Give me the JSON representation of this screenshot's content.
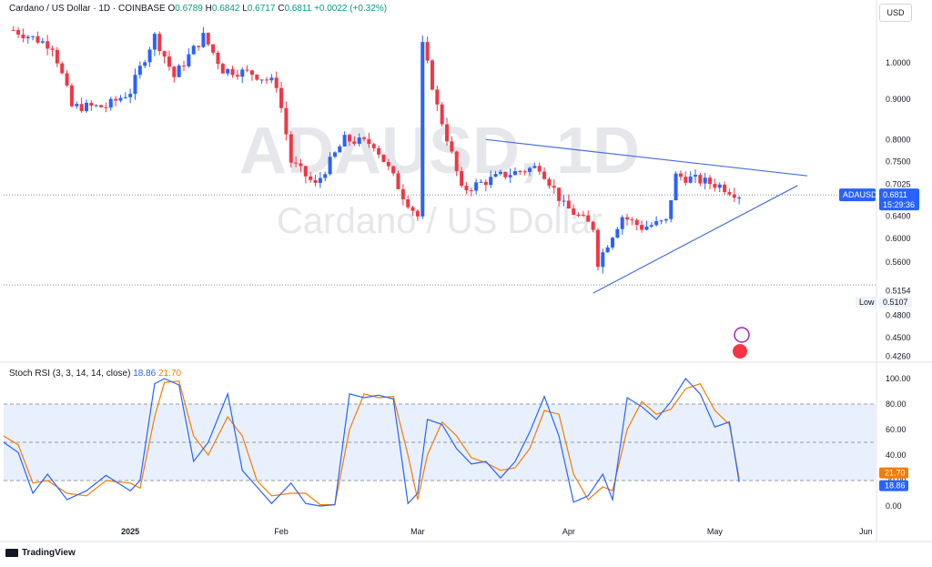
{
  "header": {
    "symbol": "Cardano / US Dollar · 1D · COINBASE",
    "o_label": "O",
    "o_value": "0.6789",
    "h_label": "H",
    "h_value": "0.6842",
    "l_label": "L",
    "l_value": "0.6717",
    "c_label": "C",
    "c_value": "0.6811",
    "change": "+0.0022 (+0.32%)"
  },
  "currency_button": "USD",
  "watermark": {
    "ticker": "ADAUSD, 1D",
    "name": "Cardano / US Dollar"
  },
  "price_axis": {
    "ticks": [
      "1.0000",
      "0.9000",
      "0.8000",
      "0.7500",
      "0.7025",
      "0.6400",
      "0.6000",
      "0.5600",
      "0.5154",
      "0.4800",
      "0.4500",
      "0.4260"
    ],
    "scale": "log"
  },
  "last_price": {
    "symbol_label": "ADAUSD",
    "price": "0.6811",
    "countdown": "15:29:36"
  },
  "low_marker": {
    "label": "Low",
    "value": "0.5107"
  },
  "stoch": {
    "title": "Stoch RSI (3, 3, 14, 14, close)",
    "k_value": "18.86",
    "d_value": "21.70",
    "ticks": [
      "100.00",
      "80.00",
      "60.00",
      "40.00",
      "20.00",
      "0.00"
    ],
    "band": [
      20,
      80
    ]
  },
  "time_axis": {
    "labels": [
      "2025",
      "Feb",
      "Mar",
      "Apr",
      "May",
      "Jun"
    ]
  },
  "brand": "TradingView",
  "colors": {
    "up": "#2962ff",
    "down": "#f23645",
    "k_line": "#2962ff",
    "d_line": "#f57c00",
    "trendline": "#4a6fdc",
    "band": "#e8f0fe"
  },
  "chart_data": {
    "type": "candlestick",
    "title": "Cardano / US Dollar",
    "timeframe": "1D",
    "exchange": "COINBASE",
    "x_range": [
      "2024-12-06",
      "2025-06-03"
    ],
    "y_range": [
      0.42,
      1.2
    ],
    "ohlc_close_approx": [
      [
        "2024-12-08",
        1.1
      ],
      [
        "2024-12-16",
        1.05
      ],
      [
        "2024-12-20",
        0.88
      ],
      [
        "2024-12-27",
        0.88
      ],
      [
        "2025-01-01",
        0.92
      ],
      [
        "2025-01-06",
        1.08
      ],
      [
        "2025-01-10",
        0.96
      ],
      [
        "2025-01-16",
        1.08
      ],
      [
        "2025-01-20",
        0.98
      ],
      [
        "2025-01-26",
        0.97
      ],
      [
        "2025-01-31",
        0.94
      ],
      [
        "2025-02-03",
        0.75
      ],
      [
        "2025-02-08",
        0.7
      ],
      [
        "2025-02-14",
        0.8
      ],
      [
        "2025-02-20",
        0.79
      ],
      [
        "2025-02-26",
        0.68
      ],
      [
        "2025-03-01",
        0.64
      ],
      [
        "2025-03-02",
        1.05
      ],
      [
        "2025-03-05",
        0.88
      ],
      [
        "2025-03-10",
        0.69
      ],
      [
        "2025-03-18",
        0.72
      ],
      [
        "2025-03-26",
        0.74
      ],
      [
        "2025-03-31",
        0.66
      ],
      [
        "2025-04-06",
        0.62
      ],
      [
        "2025-04-07",
        0.56
      ],
      [
        "2025-04-12",
        0.64
      ],
      [
        "2025-04-16",
        0.62
      ],
      [
        "2025-04-21",
        0.63
      ],
      [
        "2025-04-23",
        0.72
      ],
      [
        "2025-04-28",
        0.71
      ],
      [
        "2025-05-02",
        0.7
      ],
      [
        "2025-05-06",
        0.6811
      ]
    ],
    "trendlines": [
      {
        "from": [
          "2025-03-15",
          0.8
        ],
        "to": [
          "2025-05-20",
          0.72
        ]
      },
      {
        "from": [
          "2025-04-06",
          0.512
        ],
        "to": [
          "2025-05-18",
          0.7
        ]
      }
    ],
    "stoch_rsi": {
      "params": "3, 3, 14, 14, close",
      "k": 18.86,
      "d": 21.7,
      "overbought": 80,
      "oversold": 20,
      "k_series": [
        [
          "2024-12-06",
          50
        ],
        [
          "2024-12-09",
          42
        ],
        [
          "2024-12-12",
          10
        ],
        [
          "2024-12-15",
          25
        ],
        [
          "2024-12-19",
          5
        ],
        [
          "2024-12-23",
          12
        ],
        [
          "2024-12-27",
          24
        ],
        [
          "2025-01-01",
          12
        ],
        [
          "2025-01-03",
          20
        ],
        [
          "2025-01-06",
          96
        ],
        [
          "2025-01-08",
          100
        ],
        [
          "2025-01-11",
          95
        ],
        [
          "2025-01-14",
          35
        ],
        [
          "2025-01-17",
          50
        ],
        [
          "2025-01-21",
          88
        ],
        [
          "2025-01-24",
          28
        ],
        [
          "2025-01-27",
          15
        ],
        [
          "2025-01-30",
          2
        ],
        [
          "2025-02-03",
          18
        ],
        [
          "2025-02-06",
          2
        ],
        [
          "2025-02-09",
          0
        ],
        [
          "2025-02-12",
          1
        ],
        [
          "2025-02-15",
          88
        ],
        [
          "2025-02-18",
          85
        ],
        [
          "2025-02-21",
          87
        ],
        [
          "2025-02-24",
          84
        ],
        [
          "2025-02-27",
          2
        ],
        [
          "2025-03-01",
          10
        ],
        [
          "2025-03-03",
          68
        ],
        [
          "2025-03-06",
          64
        ],
        [
          "2025-03-09",
          45
        ],
        [
          "2025-03-12",
          33
        ],
        [
          "2025-03-15",
          35
        ],
        [
          "2025-03-18",
          22
        ],
        [
          "2025-03-21",
          35
        ],
        [
          "2025-03-24",
          58
        ],
        [
          "2025-03-27",
          86
        ],
        [
          "2025-03-30",
          55
        ],
        [
          "2025-04-02",
          3
        ],
        [
          "2025-04-05",
          8
        ],
        [
          "2025-04-08",
          25
        ],
        [
          "2025-04-10",
          5
        ],
        [
          "2025-04-13",
          85
        ],
        [
          "2025-04-16",
          78
        ],
        [
          "2025-04-19",
          68
        ],
        [
          "2025-04-22",
          82
        ],
        [
          "2025-04-25",
          100
        ],
        [
          "2025-04-28",
          88
        ],
        [
          "2025-05-01",
          62
        ],
        [
          "2025-05-04",
          66
        ],
        [
          "2025-05-06",
          18.86
        ]
      ],
      "d_series": [
        [
          "2024-12-06",
          55
        ],
        [
          "2024-12-09",
          48
        ],
        [
          "2024-12-12",
          18
        ],
        [
          "2024-12-15",
          20
        ],
        [
          "2024-12-19",
          10
        ],
        [
          "2024-12-23",
          8
        ],
        [
          "2024-12-27",
          20
        ],
        [
          "2025-01-01",
          18
        ],
        [
          "2025-01-03",
          14
        ],
        [
          "2025-01-06",
          70
        ],
        [
          "2025-01-08",
          97
        ],
        [
          "2025-01-11",
          98
        ],
        [
          "2025-01-14",
          55
        ],
        [
          "2025-01-17",
          40
        ],
        [
          "2025-01-21",
          70
        ],
        [
          "2025-01-24",
          55
        ],
        [
          "2025-01-27",
          20
        ],
        [
          "2025-01-30",
          8
        ],
        [
          "2025-02-03",
          10
        ],
        [
          "2025-02-06",
          10
        ],
        [
          "2025-02-09",
          1
        ],
        [
          "2025-02-12",
          1
        ],
        [
          "2025-02-15",
          60
        ],
        [
          "2025-02-18",
          88
        ],
        [
          "2025-02-21",
          85
        ],
        [
          "2025-02-24",
          86
        ],
        [
          "2025-02-27",
          40
        ],
        [
          "2025-03-01",
          5
        ],
        [
          "2025-03-03",
          40
        ],
        [
          "2025-03-06",
          66
        ],
        [
          "2025-03-09",
          55
        ],
        [
          "2025-03-12",
          38
        ],
        [
          "2025-03-15",
          34
        ],
        [
          "2025-03-18",
          28
        ],
        [
          "2025-03-21",
          30
        ],
        [
          "2025-03-24",
          45
        ],
        [
          "2025-03-27",
          75
        ],
        [
          "2025-03-30",
          72
        ],
        [
          "2025-04-02",
          25
        ],
        [
          "2025-04-05",
          5
        ],
        [
          "2025-04-08",
          15
        ],
        [
          "2025-04-10",
          12
        ],
        [
          "2025-04-13",
          60
        ],
        [
          "2025-04-16",
          82
        ],
        [
          "2025-04-19",
          72
        ],
        [
          "2025-04-22",
          76
        ],
        [
          "2025-04-25",
          92
        ],
        [
          "2025-04-28",
          96
        ],
        [
          "2025-05-01",
          75
        ],
        [
          "2025-05-04",
          64
        ],
        [
          "2025-05-06",
          21.7
        ]
      ]
    }
  }
}
